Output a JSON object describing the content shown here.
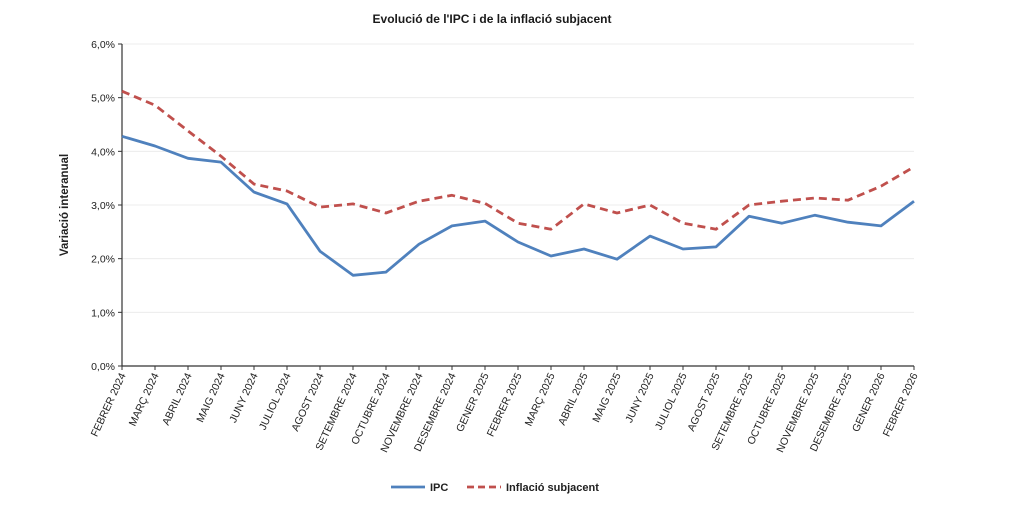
{
  "chart_data": {
    "type": "line",
    "title": "Evolució de l'IPC i de la inflació subjacent",
    "xlabel": "",
    "ylabel": "Variació interanual",
    "ylim": [
      0,
      6
    ],
    "yticks": [
      "0,0%",
      "1,0%",
      "2,0%",
      "3,0%",
      "4,0%",
      "5,0%",
      "6,0%"
    ],
    "grid": true,
    "legend": "bottom",
    "categories": [
      "FEBRER 2024",
      "MARÇ 2024",
      "ABRIL 2024",
      "MAIG 2024",
      "JUNY 2024",
      "JULIOL 2024",
      "AGOST 2024",
      "SETEMBRE 2024",
      "OCTUBRE 2024",
      "NOVEMBRE 2024",
      "DESEMBRE 2024",
      "GENER 2025",
      "FEBRER 2025",
      "MARÇ 2025",
      "ABRIL 2025",
      "MAIG 2025",
      "JUNY 2025",
      "JULIOL 2025",
      "AGOST 2025",
      "SETEMBRE 2025",
      "OCTUBRE 2025",
      "NOVEMBRE 2025",
      "DESEMBRE 2025",
      "GENER 2026",
      "FEBRER 2026"
    ],
    "series": [
      {
        "name": "IPC",
        "color": "#4f81bd",
        "style": "solid",
        "values": [
          4.28,
          4.1,
          3.87,
          3.8,
          3.24,
          3.02,
          2.14,
          1.69,
          1.75,
          2.27,
          2.61,
          2.7,
          2.31,
          2.05,
          2.18,
          1.99,
          2.42,
          2.18,
          2.22,
          2.79,
          2.66,
          2.81,
          2.68,
          2.61,
          3.07
        ]
      },
      {
        "name": "Inflació subjacent",
        "color": "#c0504d",
        "style": "dashed",
        "values": [
          5.12,
          4.86,
          4.38,
          3.91,
          3.39,
          3.26,
          2.96,
          3.02,
          2.85,
          3.07,
          3.18,
          3.03,
          2.66,
          2.55,
          3.02,
          2.85,
          3.0,
          2.66,
          2.55,
          3.0,
          3.07,
          3.13,
          3.09,
          3.35,
          3.71
        ]
      }
    ]
  }
}
